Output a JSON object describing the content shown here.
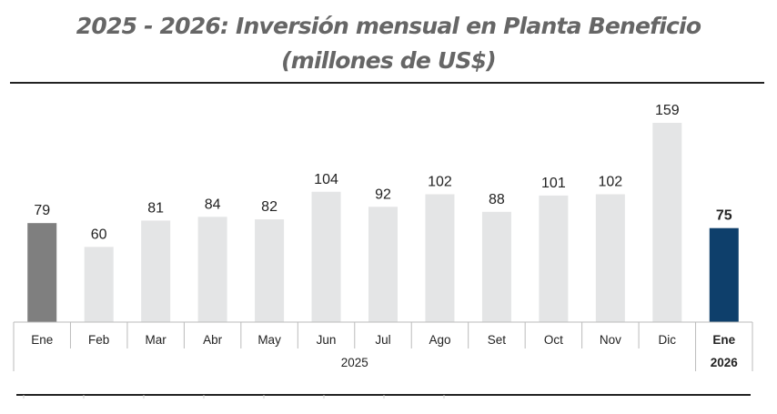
{
  "chart_data": {
    "type": "bar",
    "title": "2025 - 2026: Inversión mensual en Planta Beneficio",
    "subtitle": "(millones de US$)",
    "categories": [
      "Ene",
      "Feb",
      "Mar",
      "Abr",
      "May",
      "Jun",
      "Jul",
      "Ago",
      "Set",
      "Oct",
      "Nov",
      "Dic",
      "Ene"
    ],
    "groups": [
      {
        "label": "2025",
        "from": 0,
        "to": 11
      },
      {
        "label": "2026",
        "from": 12,
        "to": 12
      }
    ],
    "values": [
      79,
      60,
      81,
      84,
      82,
      104,
      92,
      102,
      88,
      101,
      102,
      159,
      75
    ],
    "ylim": [
      0,
      165
    ],
    "xlabel": "",
    "ylabel": "",
    "colors": {
      "first": "#7f7f7f",
      "default": "#e4e5e6",
      "last": "#0e3f6b"
    },
    "grid": false
  }
}
